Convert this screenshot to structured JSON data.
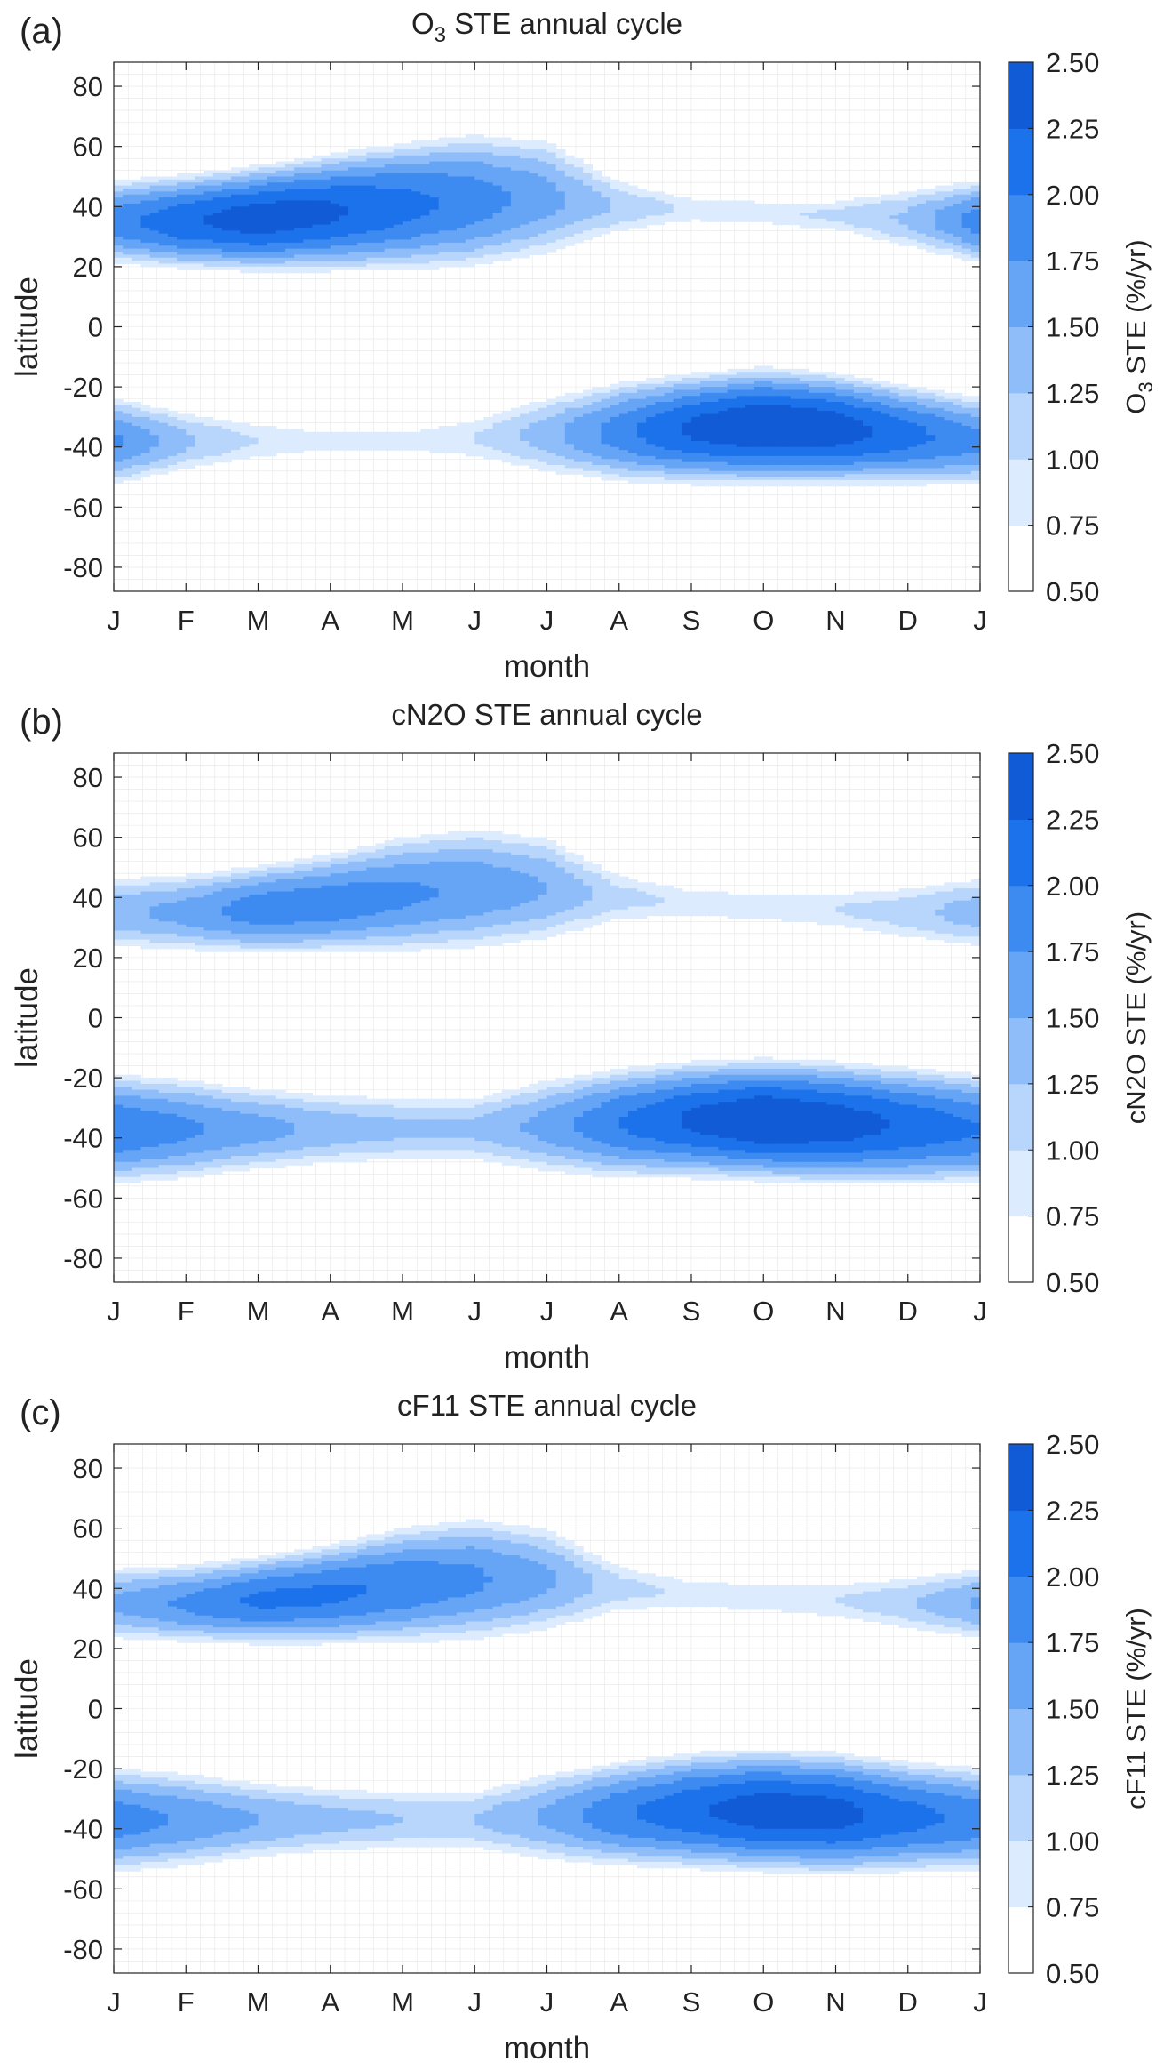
{
  "colors": {
    "levels": [
      "#ffffff",
      "#dcebfd",
      "#b8d6fc",
      "#8fbdf9",
      "#66a4f6",
      "#3d8af1",
      "#1c72ea",
      "#115bd6",
      "#0a45b9",
      "#053398",
      "#02237a",
      "#001261"
    ],
    "grid": "#e6e6e6",
    "axis": "#222222"
  },
  "chart_data": [
    {
      "type": "heatmap",
      "panel_label": "(a)",
      "title_main": "O",
      "title_sub": "3",
      "title_rest": " STE annual cycle",
      "xlabel": "month",
      "ylabel": "latitude",
      "colorbar_label_main": "O",
      "colorbar_label_sub": "3",
      "colorbar_label_rest": " STE (%/yr)",
      "x_ticks": [
        "J",
        "F",
        "M",
        "A",
        "M",
        "J",
        "J",
        "A",
        "S",
        "O",
        "N",
        "D",
        "J"
      ],
      "y_ticks": [
        80,
        60,
        40,
        20,
        0,
        -20,
        -40,
        -60,
        -80
      ],
      "ylim": [
        -88,
        88
      ],
      "xlim": [
        0,
        12
      ],
      "colorbar_ticks": [
        "2.50",
        "2.25",
        "2.00",
        "1.75",
        "1.50",
        "1.25",
        "1.00",
        "0.75",
        "0.50"
      ],
      "levels": [
        0.5,
        0.75,
        1.0,
        1.25,
        1.5,
        1.75,
        2.0,
        2.25,
        2.5
      ],
      "grid": true,
      "bands": [
        {
          "name": "NH",
          "points": [
            {
              "month": 0,
              "center": 35,
              "half_width": 15,
              "peak": 1.9
            },
            {
              "month": 1,
              "center": 35,
              "half_width": 17,
              "peak": 2.2
            },
            {
              "month": 2,
              "center": 36,
              "half_width": 19,
              "peak": 2.4
            },
            {
              "month": 3,
              "center": 38,
              "half_width": 21,
              "peak": 2.3
            },
            {
              "month": 4,
              "center": 40,
              "half_width": 23,
              "peak": 2.1
            },
            {
              "month": 5,
              "center": 42,
              "half_width": 24,
              "peak": 1.9
            },
            {
              "month": 6,
              "center": 43,
              "half_width": 21,
              "peak": 1.6
            },
            {
              "month": 7,
              "center": 40,
              "half_width": 10,
              "peak": 1.2
            },
            {
              "month": 8,
              "center": 39,
              "half_width": 5,
              "peak": 0.95
            },
            {
              "month": 9,
              "center": 38,
              "half_width": 5,
              "peak": 0.95
            },
            {
              "month": 10,
              "center": 37,
              "half_width": 6,
              "peak": 1.05
            },
            {
              "month": 11,
              "center": 36,
              "half_width": 11,
              "peak": 1.3
            },
            {
              "month": 12,
              "center": 35,
              "half_width": 15,
              "peak": 1.9
            }
          ]
        },
        {
          "name": "SH",
          "points": [
            {
              "month": 0,
              "center": -38,
              "half_width": 16,
              "peak": 1.8
            },
            {
              "month": 1,
              "center": -38,
              "half_width": 11,
              "peak": 1.3
            },
            {
              "month": 2,
              "center": -38,
              "half_width": 7,
              "peak": 1.0
            },
            {
              "month": 3,
              "center": -38,
              "half_width": 5,
              "peak": 0.85
            },
            {
              "month": 4,
              "center": -38,
              "half_width": 5,
              "peak": 0.85
            },
            {
              "month": 5,
              "center": -37,
              "half_width": 8,
              "peak": 1.0
            },
            {
              "month": 6,
              "center": -36,
              "half_width": 14,
              "peak": 1.4
            },
            {
              "month": 7,
              "center": -35,
              "half_width": 18,
              "peak": 1.9
            },
            {
              "month": 8,
              "center": -34,
              "half_width": 20,
              "peak": 2.3
            },
            {
              "month": 9,
              "center": -33,
              "half_width": 21,
              "peak": 2.5
            },
            {
              "month": 10,
              "center": -34,
              "half_width": 20,
              "peak": 2.4
            },
            {
              "month": 11,
              "center": -36,
              "half_width": 18,
              "peak": 2.1
            },
            {
              "month": 12,
              "center": -38,
              "half_width": 16,
              "peak": 1.8
            }
          ]
        }
      ]
    },
    {
      "type": "heatmap",
      "panel_label": "(b)",
      "title_main": "cN2O STE annual cycle",
      "title_sub": "",
      "title_rest": "",
      "xlabel": "month",
      "ylabel": "latitude",
      "colorbar_label_main": "cN2O STE (%/yr)",
      "colorbar_label_sub": "",
      "colorbar_label_rest": "",
      "x_ticks": [
        "J",
        "F",
        "M",
        "A",
        "M",
        "J",
        "J",
        "A",
        "S",
        "O",
        "N",
        "D",
        "J"
      ],
      "y_ticks": [
        80,
        60,
        40,
        20,
        0,
        -20,
        -40,
        -60,
        -80
      ],
      "ylim": [
        -88,
        88
      ],
      "xlim": [
        0,
        12
      ],
      "colorbar_ticks": [
        "2.50",
        "2.25",
        "2.00",
        "1.75",
        "1.50",
        "1.25",
        "1.00",
        "0.75",
        "0.50"
      ],
      "levels": [
        0.5,
        0.75,
        1.0,
        1.25,
        1.5,
        1.75,
        2.0,
        2.25,
        2.5
      ],
      "grid": true,
      "bands": [
        {
          "name": "NH",
          "points": [
            {
              "month": 0,
              "center": 35,
              "half_width": 13,
              "peak": 1.4
            },
            {
              "month": 1,
              "center": 35,
              "half_width": 14,
              "peak": 1.6
            },
            {
              "month": 2,
              "center": 36,
              "half_width": 16,
              "peak": 1.9
            },
            {
              "month": 3,
              "center": 38,
              "half_width": 18,
              "peak": 1.9
            },
            {
              "month": 4,
              "center": 41,
              "half_width": 21,
              "peak": 1.8
            },
            {
              "month": 5,
              "center": 43,
              "half_width": 22,
              "peak": 1.7
            },
            {
              "month": 6,
              "center": 43,
              "half_width": 19,
              "peak": 1.5
            },
            {
              "month": 7,
              "center": 40,
              "half_width": 9,
              "peak": 1.1
            },
            {
              "month": 8,
              "center": 38,
              "half_width": 6,
              "peak": 0.95
            },
            {
              "month": 9,
              "center": 37,
              "half_width": 6,
              "peak": 0.95
            },
            {
              "month": 10,
              "center": 36,
              "half_width": 7,
              "peak": 1.0
            },
            {
              "month": 11,
              "center": 35,
              "half_width": 10,
              "peak": 1.15
            },
            {
              "month": 12,
              "center": 35,
              "half_width": 13,
              "peak": 1.4
            }
          ]
        },
        {
          "name": "SH",
          "points": [
            {
              "month": 0,
              "center": -37,
              "half_width": 20,
              "peak": 2.0
            },
            {
              "month": 1,
              "center": -37,
              "half_width": 18,
              "peak": 1.8
            },
            {
              "month": 2,
              "center": -37,
              "half_width": 15,
              "peak": 1.6
            },
            {
              "month": 3,
              "center": -37,
              "half_width": 13,
              "peak": 1.4
            },
            {
              "month": 4,
              "center": -37,
              "half_width": 12,
              "peak": 1.3
            },
            {
              "month": 5,
              "center": -37,
              "half_width": 12,
              "peak": 1.3
            },
            {
              "month": 6,
              "center": -36,
              "half_width": 17,
              "peak": 1.6
            },
            {
              "month": 7,
              "center": -35,
              "half_width": 20,
              "peak": 2.0
            },
            {
              "month": 8,
              "center": -34,
              "half_width": 21,
              "peak": 2.3
            },
            {
              "month": 9,
              "center": -34,
              "half_width": 22,
              "peak": 2.5
            },
            {
              "month": 10,
              "center": -35,
              "half_width": 22,
              "peak": 2.4
            },
            {
              "month": 11,
              "center": -36,
              "half_width": 21,
              "peak": 2.2
            },
            {
              "month": 12,
              "center": -37,
              "half_width": 20,
              "peak": 2.0
            }
          ]
        }
      ]
    },
    {
      "type": "heatmap",
      "panel_label": "(c)",
      "title_main": "cF11 STE annual cycle",
      "title_sub": "",
      "title_rest": "",
      "xlabel": "month",
      "ylabel": "latitude",
      "colorbar_label_main": "cF11 STE (%/yr)",
      "colorbar_label_sub": "",
      "colorbar_label_rest": "",
      "x_ticks": [
        "J",
        "F",
        "M",
        "A",
        "M",
        "J",
        "J",
        "A",
        "S",
        "O",
        "N",
        "D",
        "J"
      ],
      "y_ticks": [
        80,
        60,
        40,
        20,
        0,
        -20,
        -40,
        -60,
        -80
      ],
      "ylim": [
        -88,
        88
      ],
      "xlim": [
        0,
        12
      ],
      "colorbar_ticks": [
        "2.50",
        "2.25",
        "2.00",
        "1.75",
        "1.50",
        "1.25",
        "1.00",
        "0.75",
        "0.50"
      ],
      "levels": [
        0.5,
        0.75,
        1.0,
        1.25,
        1.5,
        1.75,
        2.0,
        2.25,
        2.5
      ],
      "grid": true,
      "bands": [
        {
          "name": "NH",
          "points": [
            {
              "month": 0,
              "center": 35,
              "half_width": 13,
              "peak": 1.55
            },
            {
              "month": 1,
              "center": 35,
              "half_width": 14,
              "peak": 1.8
            },
            {
              "month": 2,
              "center": 36,
              "half_width": 16,
              "peak": 2.05
            },
            {
              "month": 3,
              "center": 38,
              "half_width": 18,
              "peak": 2.05
            },
            {
              "month": 4,
              "center": 41,
              "half_width": 21,
              "peak": 1.95
            },
            {
              "month": 5,
              "center": 43,
              "half_width": 22,
              "peak": 1.8
            },
            {
              "month": 6,
              "center": 43,
              "half_width": 19,
              "peak": 1.55
            },
            {
              "month": 7,
              "center": 40,
              "half_width": 9,
              "peak": 1.1
            },
            {
              "month": 8,
              "center": 38,
              "half_width": 6,
              "peak": 0.95
            },
            {
              "month": 9,
              "center": 37,
              "half_width": 6,
              "peak": 0.95
            },
            {
              "month": 10,
              "center": 36,
              "half_width": 7,
              "peak": 1.0
            },
            {
              "month": 11,
              "center": 35,
              "half_width": 10,
              "peak": 1.2
            },
            {
              "month": 12,
              "center": 35,
              "half_width": 13,
              "peak": 1.55
            }
          ]
        },
        {
          "name": "SH",
          "points": [
            {
              "month": 0,
              "center": -37,
              "half_width": 19,
              "peak": 1.9
            },
            {
              "month": 1,
              "center": -37,
              "half_width": 17,
              "peak": 1.7
            },
            {
              "month": 2,
              "center": -37,
              "half_width": 14,
              "peak": 1.5
            },
            {
              "month": 3,
              "center": -37,
              "half_width": 12,
              "peak": 1.35
            },
            {
              "month": 4,
              "center": -37,
              "half_width": 11,
              "peak": 1.25
            },
            {
              "month": 5,
              "center": -37,
              "half_width": 11,
              "peak": 1.25
            },
            {
              "month": 6,
              "center": -36,
              "half_width": 16,
              "peak": 1.55
            },
            {
              "month": 7,
              "center": -35,
              "half_width": 19,
              "peak": 1.95
            },
            {
              "month": 8,
              "center": -34,
              "half_width": 21,
              "peak": 2.2
            },
            {
              "month": 9,
              "center": -34,
              "half_width": 22,
              "peak": 2.4
            },
            {
              "month": 10,
              "center": -35,
              "half_width": 22,
              "peak": 2.35
            },
            {
              "month": 11,
              "center": -36,
              "half_width": 20,
              "peak": 2.1
            },
            {
              "month": 12,
              "center": -37,
              "half_width": 19,
              "peak": 1.9
            }
          ]
        }
      ]
    }
  ]
}
